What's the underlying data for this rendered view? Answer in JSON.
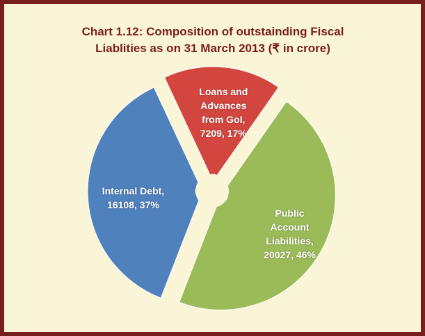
{
  "chart_data": {
    "type": "pie",
    "title": "Chart 1.12: Composition of outstainding Fiscal Liablities as on 31 March 2013 (₹ in crore)",
    "categories": [
      "Loans and Advances from GoI",
      "Public Account Liabilities",
      "Internal Debt"
    ],
    "values": [
      7209,
      20027,
      16108
    ],
    "value_labels": [
      "Loans and Advances from GoI, 7209, 17%",
      "Public Account Liabilities, 20027, 46%",
      "Internal Debt, 16108, 37%"
    ],
    "colors": [
      "#d2463f",
      "#9bbb59",
      "#4f81bd"
    ]
  }
}
